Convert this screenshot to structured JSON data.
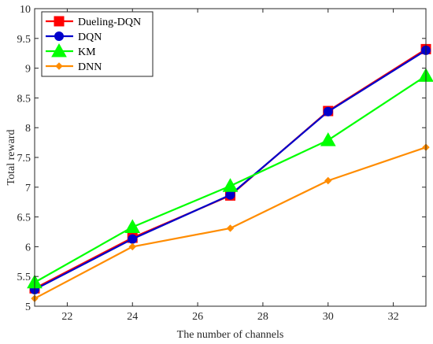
{
  "chart_data": {
    "type": "line",
    "xlabel": "The number of channels",
    "ylabel": "Total reward",
    "xlim": [
      21,
      33
    ],
    "ylim": [
      5,
      10
    ],
    "xticks": [
      22,
      24,
      26,
      28,
      30,
      32
    ],
    "yticks": [
      5,
      5.5,
      6,
      6.5,
      7,
      7.5,
      8,
      8.5,
      9,
      9.5,
      10
    ],
    "grid": false,
    "legend_position": "top-left",
    "x": [
      21,
      24,
      27,
      30,
      33
    ],
    "series": [
      {
        "name": "Dueling-DQN",
        "values": [
          5.3,
          6.15,
          6.86,
          8.28,
          9.32
        ],
        "color": "#ff0000",
        "marker": "square"
      },
      {
        "name": "DQN",
        "values": [
          5.28,
          6.13,
          6.87,
          8.27,
          9.3
        ],
        "color": "#0000cc",
        "marker": "circle"
      },
      {
        "name": "KM",
        "values": [
          5.4,
          6.33,
          7.02,
          7.79,
          8.87
        ],
        "color": "#00ff00",
        "marker": "triangle"
      },
      {
        "name": "DNN",
        "values": [
          5.13,
          6.0,
          6.31,
          7.11,
          7.67
        ],
        "color": "#ff8c00",
        "marker": "diamond"
      }
    ]
  }
}
